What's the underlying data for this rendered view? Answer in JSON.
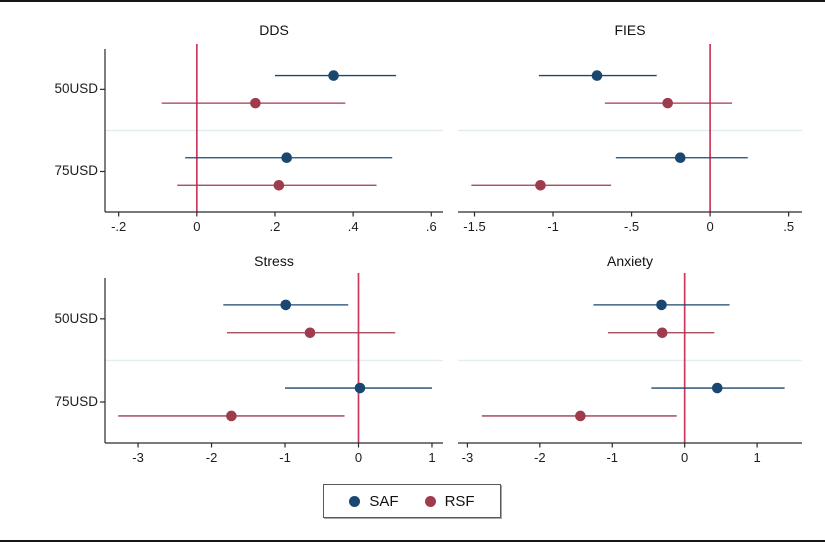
{
  "figure": {
    "row_labels": [
      "50USD",
      "75USD"
    ],
    "legend": {
      "items": [
        {
          "label": "SAF",
          "color": "#1a476f"
        },
        {
          "label": "RSF",
          "color": "#9e3b4d"
        }
      ]
    },
    "colors": {
      "saf": "#1a476f",
      "rsf": "#9e3b4d",
      "ref_line": "#cb3a5e",
      "separator": "#e4eef0",
      "axis": "#2a2a2a"
    }
  },
  "chart_data": [
    {
      "type": "scatter",
      "subtype": "coefficient-plot-horizontal-ci",
      "title": "DDS",
      "categories": [
        "50USD",
        "75USD"
      ],
      "series": [
        {
          "name": "SAF",
          "color_key": "saf",
          "points": [
            {
              "category": "50USD",
              "est": 0.35,
              "ci_low": 0.2,
              "ci_high": 0.51
            },
            {
              "category": "75USD",
              "est": 0.23,
              "ci_low": -0.03,
              "ci_high": 0.5
            }
          ]
        },
        {
          "name": "RSF",
          "color_key": "rsf",
          "points": [
            {
              "category": "50USD",
              "est": 0.15,
              "ci_low": -0.09,
              "ci_high": 0.38
            },
            {
              "category": "75USD",
              "est": 0.21,
              "ci_low": -0.05,
              "ci_high": 0.46
            }
          ]
        }
      ],
      "xticks": [
        -0.2,
        0,
        0.2,
        0.4,
        0.6
      ],
      "xtick_labels": [
        "-.2",
        "0",
        ".2",
        ".4",
        ".6"
      ],
      "xlim": [
        -0.235,
        0.63
      ],
      "ref_line_x": 0,
      "grid": false
    },
    {
      "type": "scatter",
      "subtype": "coefficient-plot-horizontal-ci",
      "title": "FIES",
      "categories": [
        "50USD",
        "75USD"
      ],
      "series": [
        {
          "name": "SAF",
          "color_key": "saf",
          "points": [
            {
              "category": "50USD",
              "est": -0.72,
              "ci_low": -1.09,
              "ci_high": -0.34
            },
            {
              "category": "75USD",
              "est": -0.19,
              "ci_low": -0.6,
              "ci_high": 0.24
            }
          ]
        },
        {
          "name": "RSF",
          "color_key": "rsf",
          "points": [
            {
              "category": "50USD",
              "est": -0.27,
              "ci_low": -0.67,
              "ci_high": 0.14
            },
            {
              "category": "75USD",
              "est": -1.08,
              "ci_low": -1.52,
              "ci_high": -0.63
            }
          ]
        }
      ],
      "xticks": [
        -1.5,
        -1,
        -0.5,
        0,
        0.5
      ],
      "xtick_labels": [
        "-1.5",
        "-1",
        "-.5",
        "0",
        ".5"
      ],
      "xlim": [
        -1.605,
        0.585
      ],
      "ref_line_x": 0,
      "grid": false
    },
    {
      "type": "scatter",
      "subtype": "coefficient-plot-horizontal-ci",
      "title": "Stress",
      "categories": [
        "50USD",
        "75USD"
      ],
      "series": [
        {
          "name": "SAF",
          "color_key": "saf",
          "points": [
            {
              "category": "50USD",
              "est": -0.99,
              "ci_low": -1.84,
              "ci_high": -0.14
            },
            {
              "category": "75USD",
              "est": 0.02,
              "ci_low": -1.0,
              "ci_high": 1.0
            }
          ]
        },
        {
          "name": "RSF",
          "color_key": "rsf",
          "points": [
            {
              "category": "50USD",
              "est": -0.66,
              "ci_low": -1.79,
              "ci_high": 0.5
            },
            {
              "category": "75USD",
              "est": -1.73,
              "ci_low": -3.27,
              "ci_high": -0.19
            }
          ]
        }
      ],
      "xticks": [
        -3,
        -2,
        -1,
        0,
        1
      ],
      "xtick_labels": [
        "-3",
        "-2",
        "-1",
        "0",
        "1"
      ],
      "xlim": [
        -3.45,
        1.15
      ],
      "ref_line_x": 0,
      "grid": false
    },
    {
      "type": "scatter",
      "subtype": "coefficient-plot-horizontal-ci",
      "title": "Anxiety",
      "categories": [
        "50USD",
        "75USD"
      ],
      "series": [
        {
          "name": "SAF",
          "color_key": "saf",
          "points": [
            {
              "category": "50USD",
              "est": -0.32,
              "ci_low": -1.26,
              "ci_high": 0.62
            },
            {
              "category": "75USD",
              "est": 0.45,
              "ci_low": -0.46,
              "ci_high": 1.38
            }
          ]
        },
        {
          "name": "RSF",
          "color_key": "rsf",
          "points": [
            {
              "category": "50USD",
              "est": -0.31,
              "ci_low": -1.06,
              "ci_high": 0.41
            },
            {
              "category": "75USD",
              "est": -1.44,
              "ci_low": -2.8,
              "ci_high": -0.11
            }
          ]
        }
      ],
      "xticks": [
        -3,
        -2,
        -1,
        0,
        1
      ],
      "xtick_labels": [
        "-3",
        "-2",
        "-1",
        "0",
        "1"
      ],
      "xlim": [
        -3.13,
        1.62
      ],
      "ref_line_x": 0,
      "grid": false
    }
  ]
}
